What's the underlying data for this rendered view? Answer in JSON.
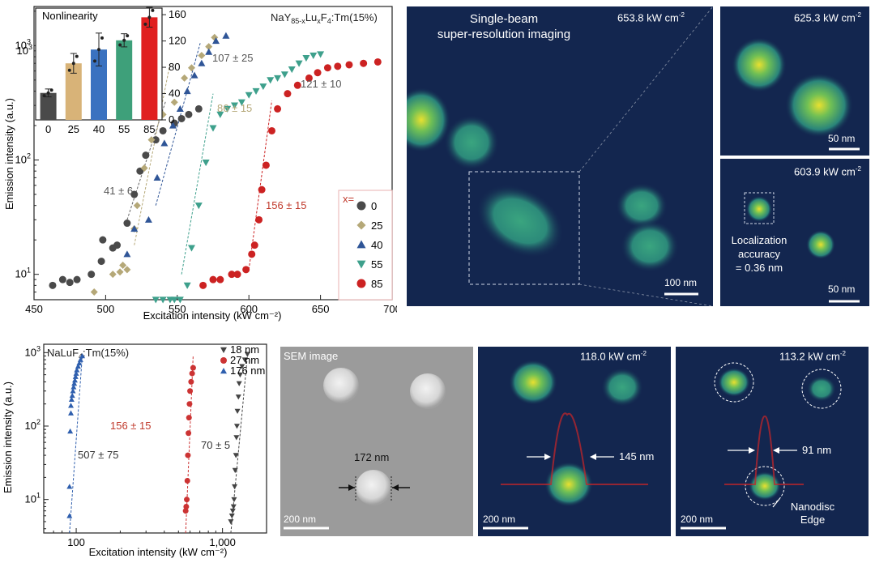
{
  "chart_data": [
    {
      "type": "scatter",
      "y_scale": "log",
      "title_formula": {
        "base": "NaY",
        "sub1": "85-x",
        "mid": "Lu",
        "sub2": "x",
        "tail": "F",
        "sub3": "4",
        "dopant": ":Tm(15%)"
      },
      "xlabel": "Excitation intensity (kW cm⁻²)",
      "ylabel": "Emission intensity (a.u.)",
      "xlim": [
        450,
        700
      ],
      "ylim": [
        6,
        2200
      ],
      "x_ticks": [
        "450",
        "500",
        "550",
        "600",
        "650",
        "700"
      ],
      "legend_title": "x=",
      "series": [
        {
          "name": "0",
          "marker": "circle",
          "color": "#4a4a4a",
          "x": [
            463,
            470,
            475,
            480,
            490,
            497,
            498,
            505,
            508,
            515,
            520,
            524,
            528,
            535,
            540,
            548,
            553,
            558,
            565
          ],
          "y": [
            8,
            9,
            8.5,
            9,
            10,
            13,
            20,
            17,
            18,
            28,
            50,
            80,
            110,
            150,
            180,
            210,
            230,
            250,
            280
          ]
        },
        {
          "name": "25",
          "marker": "diamond",
          "color": "#b5a878",
          "x": [
            492,
            505,
            510,
            512,
            515,
            520,
            522,
            527,
            532,
            540,
            548,
            555,
            560,
            567,
            572,
            576
          ],
          "y": [
            7,
            10,
            10.5,
            12,
            11,
            25,
            40,
            85,
            150,
            250,
            320,
            520,
            640,
            820,
            980,
            1180
          ]
        },
        {
          "name": "40",
          "marker": "triangle-up",
          "color": "#2f5597",
          "x": [
            515,
            520,
            530,
            536,
            541,
            547,
            552,
            557,
            562,
            567,
            572,
            577,
            584
          ],
          "y": [
            15,
            25,
            30,
            70,
            140,
            200,
            280,
            400,
            550,
            700,
            880,
            1100,
            1220
          ]
        },
        {
          "name": "55",
          "marker": "triangle-down",
          "color": "#3ea08c",
          "x": [
            535,
            540,
            545,
            548,
            552,
            557,
            560,
            565,
            570,
            575,
            580,
            585,
            590,
            595,
            600,
            605,
            610,
            615,
            620,
            625,
            630,
            635,
            640,
            645,
            650
          ],
          "y": [
            6,
            6,
            6,
            6,
            6,
            8,
            17,
            40,
            95,
            190,
            250,
            280,
            300,
            320,
            370,
            400,
            440,
            500,
            520,
            560,
            620,
            700,
            780,
            820,
            840
          ]
        },
        {
          "name": "85",
          "marker": "circle",
          "color": "#cc2222",
          "x": [
            568,
            575,
            580,
            588,
            592,
            598,
            602,
            604,
            607,
            609,
            612,
            616,
            620,
            627,
            634,
            642,
            648,
            655,
            662,
            670,
            680,
            690
          ],
          "y": [
            8,
            9,
            9,
            10,
            10,
            11,
            15,
            18,
            30,
            55,
            90,
            180,
            280,
            380,
            450,
            520,
            580,
            640,
            660,
            680,
            700,
            720
          ]
        }
      ],
      "annotations": [
        {
          "text": "107 ± 25",
          "color": "#555555"
        },
        {
          "text": "121 ± 10",
          "color": "#555555"
        },
        {
          "text": "86 ± 15",
          "color": "#b5a878"
        },
        {
          "text": "41 ± 6",
          "color": "#555555"
        },
        {
          "text": "156 ± 15",
          "color": "#c0392b"
        }
      ],
      "fit_lines": [
        {
          "color": "#666666",
          "x": [
            515,
            542
          ],
          "y": [
            30,
            330
          ]
        },
        {
          "color": "#b5a878",
          "x": [
            520,
            545
          ],
          "y": [
            18,
            700
          ]
        },
        {
          "color": "#2f5597",
          "x": [
            535,
            566
          ],
          "y": [
            40,
            1050
          ]
        },
        {
          "color": "#3ea08c",
          "x": [
            553,
            575
          ],
          "y": [
            10,
            380
          ]
        },
        {
          "color": "#cc2222",
          "x": [
            600,
            616
          ],
          "y": [
            11,
            330
          ]
        }
      ]
    },
    {
      "type": "bar",
      "title": "Nonlinearity",
      "categories": [
        "0",
        "25",
        "40",
        "55",
        "85"
      ],
      "values": [
        41,
        86,
        107,
        121,
        156
      ],
      "errors": [
        6,
        15,
        25,
        10,
        15
      ],
      "colors": [
        "#4a4a4a",
        "#d8b378",
        "#3a72c0",
        "#3ea07a",
        "#e02020"
      ],
      "ylim": [
        0,
        170
      ],
      "y_ticks": [
        "0",
        "40",
        "80",
        "120",
        "160"
      ],
      "left_axis_ticks": [
        "10³"
      ]
    },
    {
      "type": "scatter",
      "y_scale": "log",
      "x_scale": "log",
      "title_formula": {
        "base": "NaLuF",
        "sub": "4",
        "dopant": ":Tm(15%)"
      },
      "xlabel": "Excitation intensity (kW cm⁻²)",
      "ylabel": "Emission intensity (a.u.)",
      "xlim": [
        60,
        2000
      ],
      "ylim": [
        3.5,
        1300
      ],
      "x_ticks": [
        "100",
        "1,000"
      ],
      "series": [
        {
          "name": "18 nm",
          "marker": "triangle-down",
          "color": "#444444",
          "x": [
            1140,
            1160,
            1175,
            1190,
            1200,
            1210,
            1220,
            1235,
            1245,
            1255,
            1265,
            1285,
            1300,
            1320,
            1360,
            1420,
            1480
          ],
          "y": [
            5,
            6,
            7,
            8,
            10,
            15,
            25,
            40,
            70,
            100,
            160,
            250,
            380,
            500,
            650,
            800,
            950
          ]
        },
        {
          "name": "27 nm",
          "marker": "circle",
          "color": "#cc3333",
          "x": [
            560,
            565,
            570,
            575,
            580,
            585,
            590,
            595,
            600,
            610,
            620,
            630
          ],
          "y": [
            7,
            8,
            10,
            18,
            40,
            80,
            130,
            200,
            300,
            400,
            520,
            620
          ]
        },
        {
          "name": "176 nm",
          "marker": "triangle-up",
          "color": "#2f5fae",
          "x": [
            90,
            90,
            91,
            92,
            92,
            93,
            94,
            95,
            96,
            97,
            98,
            99,
            100,
            101,
            103,
            105,
            107,
            110
          ],
          "y": [
            6,
            15,
            85,
            150,
            190,
            230,
            260,
            300,
            340,
            380,
            420,
            470,
            520,
            580,
            650,
            720,
            800,
            900
          ]
        }
      ],
      "annotations": [
        {
          "text": "507 ± 75",
          "color": "#333333"
        },
        {
          "text": "156 ± 15",
          "color": "#c0392b"
        },
        {
          "text": "70 ± 5",
          "color": "#333333"
        }
      ]
    }
  ],
  "images": {
    "main": {
      "title": "Single-beam\nsuper-resolution imaging",
      "power": "653.8 kW cm",
      "scale": "100 nm"
    },
    "top_right": {
      "power": "625.3 kW cm",
      "scale": "50 nm"
    },
    "mid_right": {
      "power": "603.9 kW cm",
      "caption": "Localization\naccuracy\n= 0.36 nm",
      "scale": "50 nm"
    },
    "sem": {
      "title": "SEM image",
      "size": "172 nm",
      "scale": "200 nm"
    },
    "confocal": {
      "power": "118.0 kW cm",
      "fwhm": "145 nm",
      "scale": "200 nm"
    },
    "edge": {
      "power": "113.2 kW cm",
      "fwhm": "91 nm",
      "label": "Nanodisc\nEdge",
      "scale": "200 nm"
    },
    "power_exp": "-2"
  }
}
